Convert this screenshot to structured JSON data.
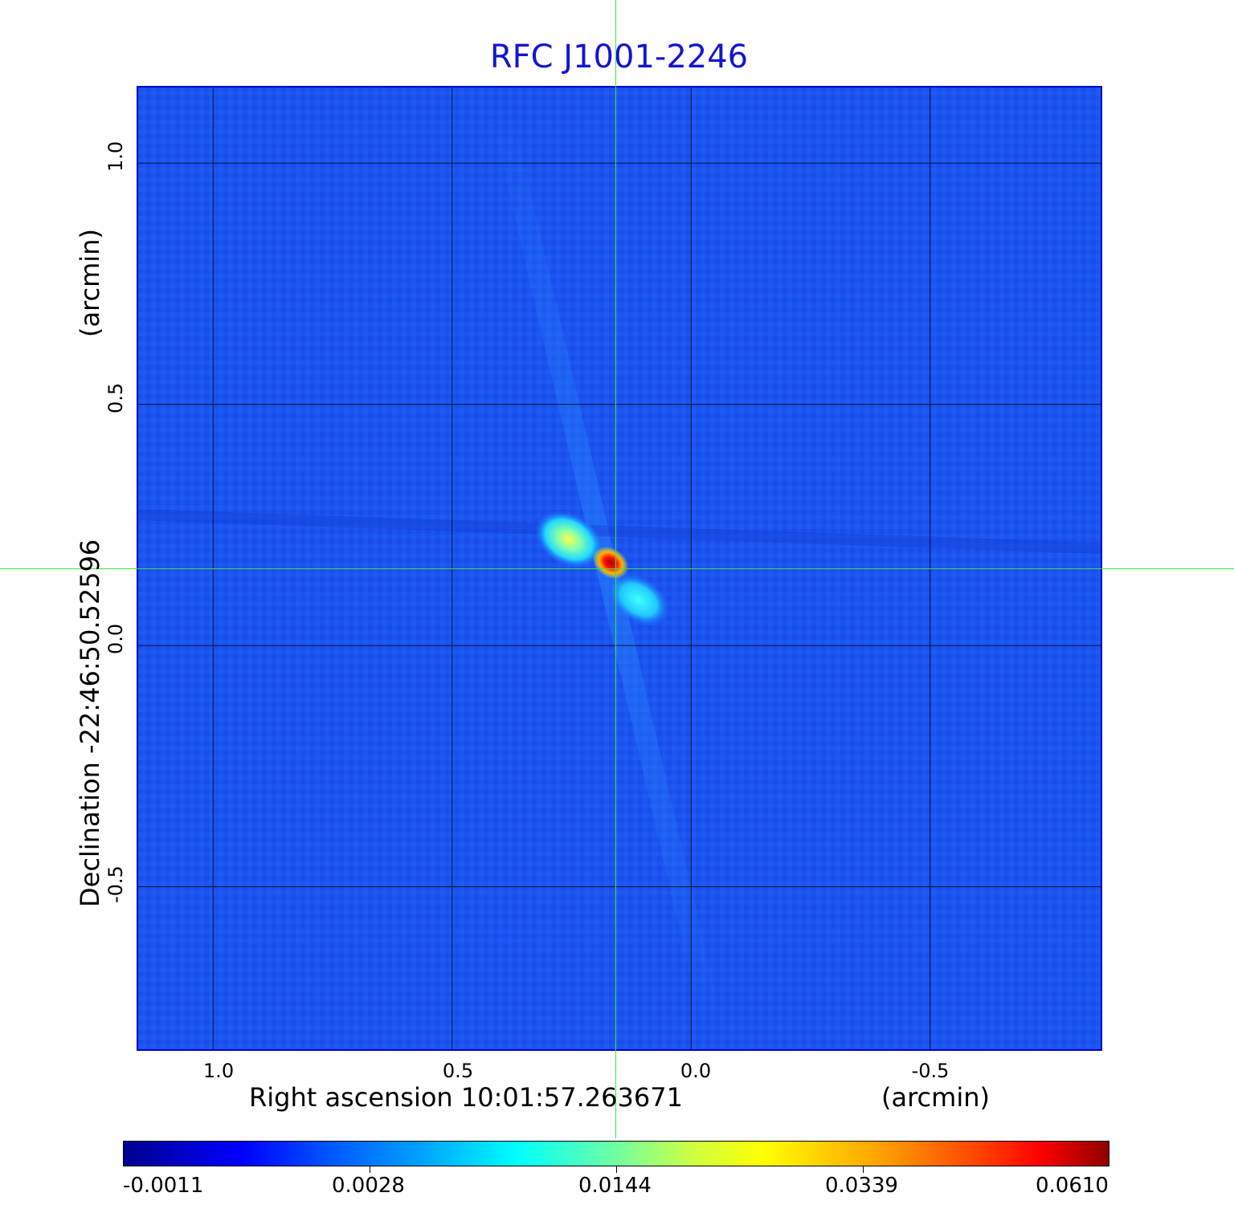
{
  "title": "RFC J1001-2246",
  "x_axis": {
    "label": "Right ascension  10:01:57.263671",
    "units": "(arcmin)",
    "ticks": [
      "1.0",
      "0.5",
      "0.0",
      "-0.5"
    ],
    "tick_values": [
      1.0,
      0.5,
      0.0,
      -0.5
    ],
    "range": [
      1.16,
      -0.86
    ]
  },
  "y_axis": {
    "label": "Declination  -22:46:50.52596",
    "units": "(arcmin)",
    "ticks": [
      "1.0",
      "0.5",
      "0.0",
      "-0.5"
    ],
    "tick_values": [
      1.0,
      0.5,
      0.0,
      -0.5
    ],
    "range": [
      -0.84,
      1.16
    ]
  },
  "colorbar": {
    "ticks": [
      "-0.0011",
      "0.0028",
      "0.0144",
      "0.0339",
      "0.0610"
    ],
    "colormap": "jet",
    "min": -0.0011,
    "max": 0.061
  },
  "source": {
    "peak_ra_offset_arcmin": 0.15,
    "peak_dec_offset_arcmin": 0.17,
    "grid": "on"
  },
  "colors": {
    "title": "#1414d2",
    "crosshair": "#39e639",
    "background_map": "#1a50f0",
    "frame": "#0000cc"
  }
}
